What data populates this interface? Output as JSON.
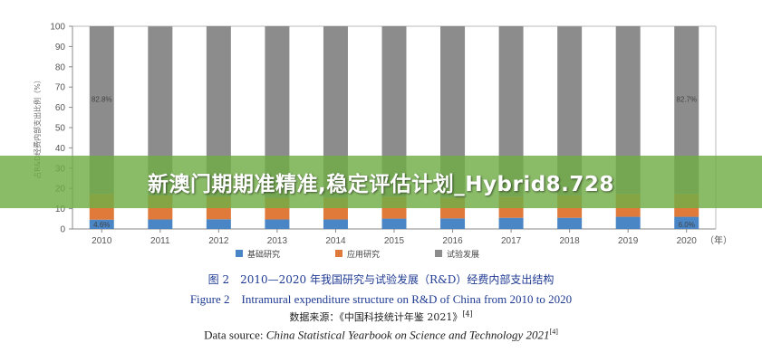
{
  "chart_data": {
    "type": "bar",
    "stacked": true,
    "categories": [
      "2010",
      "2011",
      "2012",
      "2013",
      "2014",
      "2015",
      "2016",
      "2017",
      "2018",
      "2019",
      "2020"
    ],
    "series": [
      {
        "name": "基础研究",
        "color": "#4a86c5",
        "values": [
          4.6,
          4.7,
          4.8,
          4.7,
          4.7,
          5.1,
          5.2,
          5.5,
          5.5,
          6.0,
          6.0
        ]
      },
      {
        "name": "应用研究",
        "color": "#e07a3a",
        "values": [
          12.7,
          11.8,
          11.3,
          10.7,
          10.8,
          10.8,
          10.3,
          10.5,
          11.1,
          11.3,
          11.3
        ]
      },
      {
        "name": "试验发展",
        "color": "#8c8c8c",
        "values": [
          82.8,
          83.4,
          84.0,
          84.6,
          84.8,
          84.2,
          84.5,
          84.0,
          83.3,
          82.7,
          82.7
        ]
      }
    ],
    "annotations": [
      {
        "category": "2010",
        "series": "基础研究",
        "text": "4.6%"
      },
      {
        "category": "2010",
        "series": "试验发展",
        "text": "82.8%"
      },
      {
        "category": "2020",
        "series": "基础研究",
        "text": "6.0%"
      },
      {
        "category": "2020",
        "series": "试验发展",
        "text": "82.7%"
      }
    ],
    "ylabel": "占R&D经费内部支出比例（%）",
    "x_unit": "（年）",
    "ylim": [
      0,
      100
    ],
    "yticks": [
      0,
      10,
      20,
      30,
      40,
      50,
      60,
      70,
      80,
      90,
      100
    ],
    "grid": false,
    "legend_position": "bottom"
  },
  "overlay": {
    "title": "新澳门期期准精准,稳定评估计划_Hybrid8.728"
  },
  "caption": {
    "cn": "图 2　2010—2020 年我国研究与试验发展（R&D）经费内部支出结构",
    "en": "Figure 2　Intramural expenditure structure on R&D of China from 2010 to 2020"
  },
  "source": {
    "cn_prefix": "数据来源：《中国科技统计年鉴 2021》",
    "cn_ref": "[4]",
    "en_prefix": "Data source: ",
    "en_title": "China Statistical Yearbook on Science and Technology 2021",
    "en_ref": "[4]"
  }
}
